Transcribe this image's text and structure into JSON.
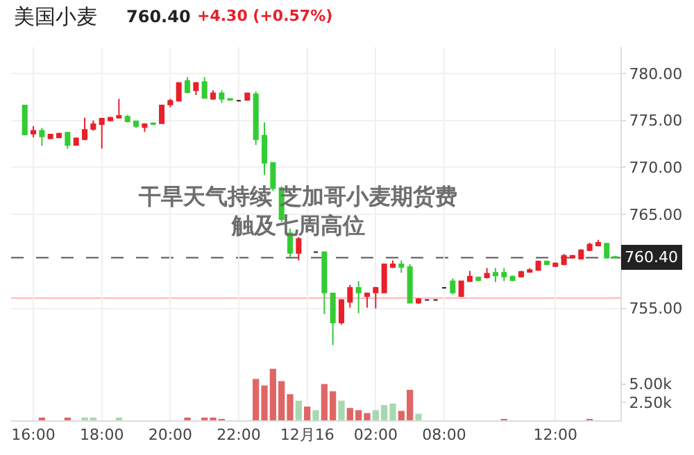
{
  "chart_data": {
    "type": "candlestick",
    "title": "美国小麦",
    "annotations": [
      "760.40",
      "+4.30 (+0.57%)",
      "干旱天气持续 芝加哥小麦期货费触及七周高位"
    ],
    "categories": [
      null,
      "16:00",
      null,
      null,
      null,
      null,
      null,
      null,
      null,
      "18:00",
      null,
      null,
      null,
      null,
      null,
      null,
      null,
      "20:00",
      null,
      null,
      null,
      null,
      null,
      null,
      null,
      "22:00",
      null,
      null,
      null,
      null,
      null,
      null,
      null,
      "12月16",
      null,
      null,
      null,
      null,
      null,
      null,
      null,
      "02:00",
      null,
      null,
      null,
      null,
      null,
      null,
      null,
      "08:00",
      null,
      null,
      null,
      null,
      null,
      null,
      null,
      null,
      null,
      null,
      null,
      null,
      "12:00",
      null,
      null,
      null,
      null,
      null,
      null,
      null
    ],
    "ohlc": [
      [
        776.6,
        776.6,
        773.5,
        773.5
      ],
      [
        773.6,
        774.4,
        773.2,
        773.9
      ],
      [
        773.9,
        774.2,
        772.3,
        773.3
      ],
      [
        773.1,
        773.6,
        773.0,
        773.5
      ],
      [
        773.2,
        773.7,
        773.1,
        773.6
      ],
      [
        773.7,
        773.8,
        772.0,
        772.4
      ],
      [
        772.4,
        773.2,
        772.3,
        773.1
      ],
      [
        773.0,
        775.3,
        772.9,
        774.0
      ],
      [
        774.1,
        775.0,
        773.9,
        774.6
      ],
      [
        774.6,
        775.3,
        772.0,
        775.2
      ],
      [
        775.0,
        775.4,
        774.9,
        775.3
      ],
      [
        775.3,
        777.3,
        775.2,
        775.5
      ],
      [
        775.4,
        775.6,
        774.8,
        774.9
      ],
      [
        774.9,
        775.0,
        774.2,
        774.4
      ],
      [
        774.3,
        774.7,
        773.8,
        774.6
      ],
      [
        774.7,
        774.8,
        774.5,
        774.6
      ],
      [
        774.7,
        776.7,
        774.7,
        776.6
      ],
      [
        776.7,
        777.3,
        776.4,
        777.1
      ],
      [
        777.1,
        779.0,
        777.0,
        779.0
      ],
      [
        779.2,
        779.6,
        777.9,
        778.0
      ],
      [
        778.2,
        779.1,
        777.7,
        779.0
      ],
      [
        779.1,
        779.6,
        777.3,
        777.4
      ],
      [
        777.3,
        778.2,
        777.2,
        777.9
      ],
      [
        777.9,
        778.2,
        776.9,
        777.3
      ],
      [
        777.3,
        777.3,
        777.1,
        777.2
      ],
      [
        777.1,
        777.1,
        777.1,
        777.1
      ],
      [
        777.2,
        777.9,
        777.1,
        777.9
      ],
      [
        777.8,
        778.1,
        772.4,
        773.0
      ],
      [
        773.4,
        774.8,
        769.2,
        770.5
      ],
      [
        770.5,
        770.5,
        767.5,
        767.8
      ],
      [
        767.8,
        768.0,
        764.2,
        764.5
      ],
      [
        763.0,
        763.5,
        760.5,
        760.9
      ],
      [
        760.9,
        762.6,
        760.1,
        762.4
      ],
      null,
      [
        761.0,
        761.0,
        761.0,
        761.0
      ],
      [
        761.0,
        761.0,
        754.4,
        756.7
      ],
      [
        756.6,
        756.6,
        751.1,
        753.5
      ],
      [
        753.5,
        756.0,
        753.3,
        755.9
      ],
      [
        755.7,
        757.5,
        755.1,
        757.2
      ],
      [
        757.2,
        757.9,
        754.5,
        756.7
      ],
      [
        756.3,
        756.7,
        755.1,
        756.6
      ],
      [
        756.7,
        757.3,
        755.0,
        757.2
      ],
      [
        756.7,
        759.7,
        756.7,
        759.7
      ],
      [
        759.4,
        760.1,
        759.3,
        759.7
      ],
      [
        759.7,
        760.1,
        758.8,
        759.4
      ],
      [
        759.4,
        759.7,
        755.6,
        755.6
      ],
      [
        755.6,
        756.1,
        755.5,
        756.0
      ],
      [
        755.9,
        755.9,
        755.9,
        755.9
      ],
      [
        755.9,
        755.9,
        755.9,
        755.9
      ],
      [
        757.2,
        757.2,
        757.2,
        757.2
      ],
      [
        757.9,
        758.2,
        756.5,
        756.7
      ],
      [
        756.3,
        757.9,
        756.3,
        757.9
      ],
      [
        757.9,
        759.0,
        757.9,
        758.4
      ],
      [
        758.3,
        758.4,
        757.9,
        758.0
      ],
      [
        758.3,
        759.3,
        758.2,
        758.7
      ],
      [
        758.8,
        759.3,
        757.8,
        758.5
      ],
      [
        758.8,
        759.3,
        757.9,
        758.4
      ],
      [
        758.4,
        758.5,
        757.9,
        758.0
      ],
      [
        758.4,
        759.0,
        758.3,
        758.9
      ],
      [
        758.9,
        759.3,
        758.8,
        759.1
      ],
      [
        759.1,
        760.1,
        759.0,
        760.0
      ],
      [
        760.0,
        760.1,
        759.6,
        759.7
      ],
      [
        759.5,
        759.9,
        759.4,
        759.8
      ],
      [
        759.7,
        760.8,
        759.6,
        760.6
      ],
      [
        760.4,
        760.7,
        760.3,
        760.6
      ],
      [
        760.3,
        761.3,
        760.2,
        761.2
      ],
      [
        761.2,
        762.0,
        761.1,
        761.8
      ],
      [
        761.7,
        762.3,
        761.6,
        762.0
      ],
      [
        761.9,
        762.0,
        760.3,
        760.4
      ],
      [
        760.5,
        760.6,
        760.3,
        760.4
      ]
    ],
    "colors": [
      "#33cc33",
      "#e8202a",
      "#33cc33",
      "#e8202a",
      "#e8202a",
      "#33cc33",
      "#e8202a",
      "#e8202a",
      "#e8202a",
      "#e8202a",
      "#e8202a",
      "#e8202a",
      "#33cc33",
      "#33cc33",
      "#e8202a",
      "#33cc33",
      "#e8202a",
      "#e8202a",
      "#e8202a",
      "#33cc33",
      "#e8202a",
      "#33cc33",
      "#e8202a",
      "#33cc33",
      "#33cc33",
      "#222222",
      "#e8202a",
      "#33cc33",
      "#33cc33",
      "#33cc33",
      "#33cc33",
      "#33cc33",
      "#e8202a",
      null,
      "#222222",
      "#33cc33",
      "#33cc33",
      "#e8202a",
      "#e8202a",
      "#33cc33",
      "#e8202a",
      "#e8202a",
      "#e8202a",
      "#e8202a",
      "#33cc33",
      "#33cc33",
      "#e8202a",
      "#222222",
      "#222222",
      "#222222",
      "#33cc33",
      "#e8202a",
      "#e8202a",
      "#33cc33",
      "#e8202a",
      "#33cc33",
      "#33cc33",
      "#33cc33",
      "#e8202a",
      "#e8202a",
      "#e8202a",
      "#33cc33",
      "#e8202a",
      "#e8202a",
      "#e8202a",
      "#e8202a",
      "#e8202a",
      "#e8202a",
      "#33cc33",
      "#33cc33"
    ],
    "series": [
      {
        "type": "bar",
        "axis": "y2",
        "values": [
          null,
          null,
          200,
          null,
          null,
          200,
          null,
          200,
          200,
          null,
          null,
          200,
          null,
          null,
          null,
          null,
          null,
          null,
          null,
          200,
          null,
          200,
          200,
          100,
          null,
          null,
          null,
          5700,
          4800,
          7100,
          5400,
          3600,
          2700,
          1900,
          1400,
          5000,
          4000,
          2700,
          1700,
          1400,
          1000,
          1400,
          2100,
          2300,
          1300,
          4200,
          900,
          null,
          null,
          null,
          null,
          null,
          null,
          null,
          null,
          null,
          100,
          null,
          null,
          null,
          null,
          null,
          null,
          null,
          null,
          null,
          100,
          null,
          null,
          null
        ],
        "colors": [
          "#e06666",
          "#e06666",
          "#e06666",
          "#e06666",
          "#e06666",
          "#e06666",
          "#e06666",
          "#a8d8b0",
          "#a8d8b0",
          "#e06666",
          "#e06666",
          "#a8d8b0",
          "#e06666",
          "#e06666",
          "#e06666",
          "#e06666",
          "#e06666",
          "#e06666",
          "#e06666",
          "#e06666",
          "#e06666",
          "#e06666",
          "#e06666",
          "#e06666",
          "#e06666",
          "#e06666",
          "#e06666",
          "#e06666",
          "#e06666",
          "#e06666",
          "#e06666",
          "#e06666",
          "#a8d8b0",
          "#e06666",
          "#a8d8b0",
          "#e06666",
          "#e06666",
          "#a8d8b0",
          "#e06666",
          "#e06666",
          "#e06666",
          "#a8d8b0",
          "#a8d8b0",
          "#a8d8b0",
          "#e06666",
          "#e06666",
          "#a8d8b0",
          "#e06666",
          "#e06666",
          "#e06666",
          "#a8d8b0",
          "#e06666",
          "#e06666",
          "#e06666",
          "#e06666",
          "#e06666",
          "#e06666",
          "#e06666",
          "#e06666",
          "#e06666",
          "#a8d8b0",
          "#a8d8b0",
          "#e06666",
          "#e06666",
          "#e06666",
          "#e06666",
          "#e06666",
          "#e06666",
          "#e06666",
          "#e06666"
        ]
      }
    ],
    "ylim": [
      743.1,
      782.8
    ],
    "yticks": [
      {
        "value": 755,
        "label": "755.00"
      },
      {
        "value": 765,
        "label": "765.00"
      },
      {
        "value": 770,
        "label": "770.00"
      },
      {
        "value": 775,
        "label": "775.00"
      },
      {
        "value": 780,
        "label": "780.00"
      }
    ],
    "y2lim": [
      0,
      51400
    ],
    "y2ticks": [
      {
        "value": 2500,
        "label": "2.50k"
      },
      {
        "value": 5000,
        "label": "5.00k"
      }
    ],
    "ref_lines": [
      {
        "axis": "y",
        "value": 760.4,
        "label": "760.40",
        "color": "#555555",
        "line_style": "dashed"
      },
      {
        "axis": "y",
        "value": 756.1,
        "color": "#ffb3b3",
        "line_style": "solid"
      }
    ],
    "grid": true
  }
}
